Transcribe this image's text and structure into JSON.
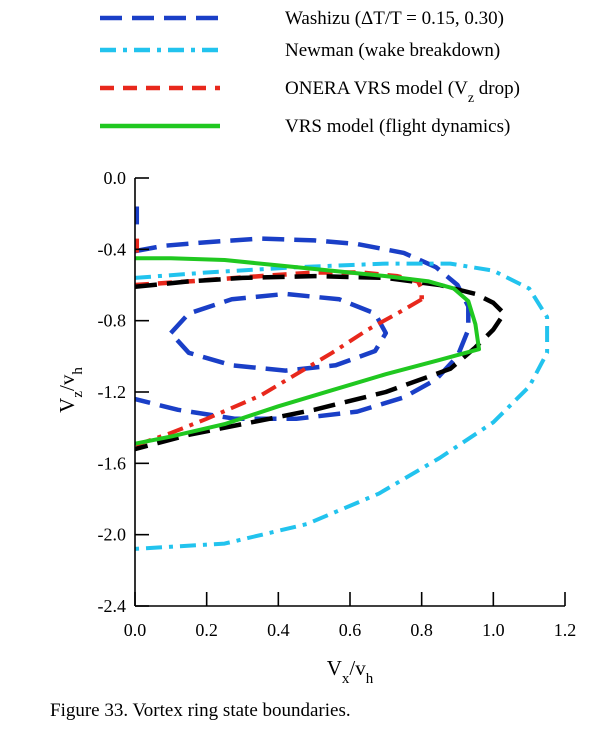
{
  "caption": "Figure 33. Vortex ring state boundaries.",
  "chart_data": {
    "type": "line",
    "xlabel": {
      "main": "V",
      "sub1": "x",
      "sep": "/v",
      "sub2": "h"
    },
    "ylabel": {
      "main": "V",
      "sub1": "z",
      "sep": "/v",
      "sub2": "h"
    },
    "xlim": [
      0.0,
      1.2
    ],
    "ylim": [
      -2.4,
      0.0
    ],
    "xticks": [
      0.0,
      0.2,
      0.4,
      0.6,
      0.8,
      1.0,
      1.2
    ],
    "xtick_labels": [
      "0.0",
      "0.2",
      "0.4",
      "0.6",
      "0.8",
      "1.0",
      "1.2"
    ],
    "yticks": [
      0.0,
      -0.4,
      -0.8,
      -1.2,
      -1.6,
      -2.0,
      -2.4
    ],
    "ytick_labels": [
      "0.0",
      "-0.4",
      "-0.8",
      "-1.2",
      "-1.6",
      "-2.0",
      "-2.4"
    ],
    "grid": false,
    "legend_position": "top",
    "legend": [
      {
        "series": "washizu",
        "parts": [
          "Washizu (ΔT/T = 0.15, 0.30)"
        ]
      },
      {
        "series": "newman",
        "parts": [
          "Newman (wake breakdown)"
        ]
      },
      {
        "series": "onera",
        "parts": [
          "ONERA VRS model (V",
          "z",
          " drop)"
        ]
      },
      {
        "series": "vrs",
        "parts": [
          "VRS model (flight dynamics)"
        ]
      }
    ],
    "series": [
      {
        "id": "washizu-outer",
        "group": "washizu",
        "color": "#1a3fc7",
        "style": "longdash",
        "closed": false,
        "points": [
          [
            0,
            -0.41
          ],
          [
            0.08,
            -0.38
          ],
          [
            0.2,
            -0.36
          ],
          [
            0.35,
            -0.34
          ],
          [
            0.5,
            -0.35
          ],
          [
            0.62,
            -0.37
          ],
          [
            0.75,
            -0.42
          ],
          [
            0.84,
            -0.5
          ],
          [
            0.9,
            -0.6
          ],
          [
            0.93,
            -0.72
          ],
          [
            0.93,
            -0.85
          ],
          [
            0.9,
            -1.0
          ],
          [
            0.84,
            -1.13
          ],
          [
            0.75,
            -1.23
          ],
          [
            0.62,
            -1.31
          ],
          [
            0.45,
            -1.35
          ],
          [
            0.28,
            -1.35
          ],
          [
            0.12,
            -1.3
          ],
          [
            0,
            -1.24
          ]
        ]
      },
      {
        "id": "washizu-inner",
        "group": "washizu",
        "color": "#1a3fc7",
        "style": "longdash",
        "closed": true,
        "points": [
          [
            0.1,
            -0.87
          ],
          [
            0.15,
            -0.76
          ],
          [
            0.27,
            -0.68
          ],
          [
            0.42,
            -0.65
          ],
          [
            0.57,
            -0.68
          ],
          [
            0.67,
            -0.76
          ],
          [
            0.7,
            -0.87
          ],
          [
            0.67,
            -0.97
          ],
          [
            0.56,
            -1.05
          ],
          [
            0.42,
            -1.08
          ],
          [
            0.27,
            -1.05
          ],
          [
            0.15,
            -0.98
          ]
        ]
      },
      {
        "id": "washizu-axis",
        "group": "washizu",
        "color": "#1a3fc7",
        "style": "longdash",
        "closed": false,
        "points": [
          [
            0.005,
            -0.16
          ],
          [
            0.005,
            -0.26
          ]
        ]
      },
      {
        "id": "newman",
        "group": "newman",
        "color": "#22c3ee",
        "style": "dashdot",
        "closed": false,
        "points": [
          [
            0,
            -0.56
          ],
          [
            0.2,
            -0.53
          ],
          [
            0.45,
            -0.5
          ],
          [
            0.7,
            -0.48
          ],
          [
            0.88,
            -0.48
          ],
          [
            1.0,
            -0.52
          ],
          [
            1.1,
            -0.62
          ],
          [
            1.15,
            -0.78
          ],
          [
            1.15,
            -0.98
          ],
          [
            1.1,
            -1.17
          ],
          [
            1.0,
            -1.37
          ],
          [
            0.85,
            -1.57
          ],
          [
            0.68,
            -1.77
          ],
          [
            0.48,
            -1.94
          ],
          [
            0.25,
            -2.05
          ],
          [
            0,
            -2.08
          ]
        ]
      },
      {
        "id": "onera-upper",
        "group": "onera",
        "color": "#e8281c",
        "style": "shortdash",
        "closed": false,
        "points": [
          [
            0,
            -0.6
          ],
          [
            0.15,
            -0.58
          ],
          [
            0.35,
            -0.55
          ],
          [
            0.5,
            -0.53
          ],
          [
            0.63,
            -0.53
          ],
          [
            0.73,
            -0.55
          ],
          [
            0.79,
            -0.58
          ],
          [
            0.8,
            -0.62
          ],
          [
            0.8,
            -0.68
          ]
        ]
      },
      {
        "id": "onera-lower",
        "group": "onera",
        "color": "#e8281c",
        "style": "dashdot",
        "closed": false,
        "points": [
          [
            0.8,
            -0.68
          ],
          [
            0.74,
            -0.75
          ],
          [
            0.65,
            -0.85
          ],
          [
            0.55,
            -0.98
          ],
          [
            0.45,
            -1.1
          ],
          [
            0.35,
            -1.22
          ],
          [
            0.2,
            -1.35
          ],
          [
            0.1,
            -1.43
          ],
          [
            0,
            -1.5
          ]
        ]
      },
      {
        "id": "onera-axis",
        "group": "onera",
        "color": "#e8281c",
        "style": "shortdash",
        "closed": false,
        "points": [
          [
            0.005,
            -0.34
          ],
          [
            0.005,
            -0.43
          ]
        ]
      },
      {
        "id": "black",
        "group": "other",
        "color": "#000000",
        "style": "longdash",
        "closed": false,
        "points": [
          [
            0,
            -0.61
          ],
          [
            0.15,
            -0.58
          ],
          [
            0.3,
            -0.56
          ],
          [
            0.5,
            -0.55
          ],
          [
            0.7,
            -0.56
          ],
          [
            0.85,
            -0.6
          ],
          [
            0.95,
            -0.65
          ],
          [
            1.0,
            -0.7
          ],
          [
            1.03,
            -0.76
          ],
          [
            1.0,
            -0.85
          ],
          [
            0.95,
            -0.95
          ],
          [
            0.88,
            -1.07
          ],
          [
            0.7,
            -1.2
          ],
          [
            0.5,
            -1.3
          ],
          [
            0.3,
            -1.38
          ],
          [
            0.15,
            -1.44
          ],
          [
            0,
            -1.52
          ]
        ]
      },
      {
        "id": "vrs",
        "group": "vrs",
        "color": "#20c820",
        "style": "solid",
        "closed": false,
        "points": [
          [
            0,
            -0.45
          ],
          [
            0.1,
            -0.45
          ],
          [
            0.25,
            -0.46
          ],
          [
            0.4,
            -0.49
          ],
          [
            0.55,
            -0.52
          ],
          [
            0.7,
            -0.55
          ],
          [
            0.82,
            -0.58
          ],
          [
            0.89,
            -0.62
          ],
          [
            0.93,
            -0.69
          ],
          [
            0.95,
            -0.82
          ],
          [
            0.96,
            -0.96
          ],
          [
            0.85,
            -1.02
          ],
          [
            0.7,
            -1.1
          ],
          [
            0.55,
            -1.19
          ],
          [
            0.4,
            -1.28
          ],
          [
            0.25,
            -1.38
          ],
          [
            0.1,
            -1.45
          ],
          [
            0,
            -1.49
          ]
        ]
      }
    ]
  }
}
